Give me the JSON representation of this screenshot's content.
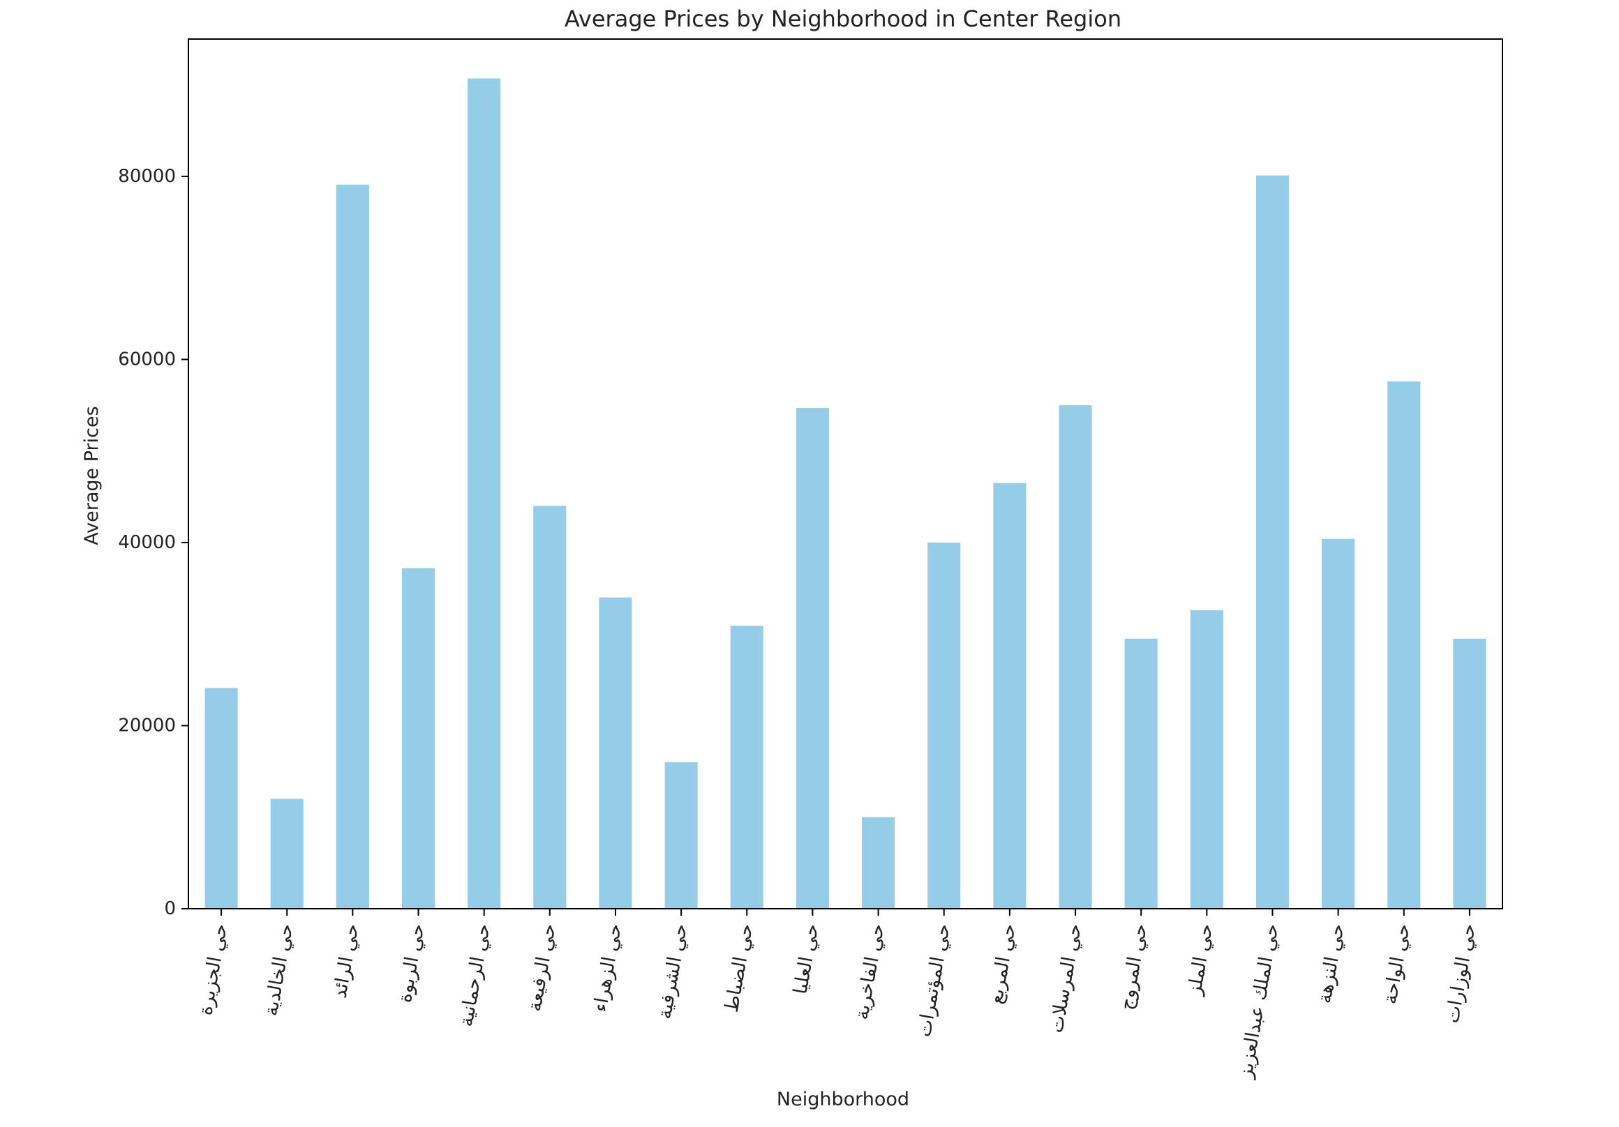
{
  "chart_data": {
    "type": "bar",
    "title": "Average Prices by Neighborhood in Center Region",
    "xlabel": "Neighborhood",
    "ylabel": "Average Prices",
    "ylim": [
      0,
      95000
    ],
    "yticks": [
      0,
      20000,
      40000,
      60000,
      80000
    ],
    "grid": false,
    "legend": "none",
    "bar_color": "#95cde8",
    "categories": [
      "حي الجزيرة",
      "حي الخالدية",
      "حي الرائد",
      "حي الربوة",
      "حي الرحمانية",
      "حي الرفيعة",
      "حي الزهراء",
      "حي الشرفية",
      "حي الضباط",
      "حي العليا",
      "حي الفاخرية",
      "حي المؤتمرات",
      "حي المربع",
      "حي المرسلات",
      "حي المروج",
      "حي الملز",
      "حي الملك عبدالعزيز",
      "حي النزهة",
      "حي الواحة",
      "حي الوزارات"
    ],
    "values": [
      24100,
      12000,
      79100,
      37200,
      90700,
      44000,
      34000,
      16000,
      30900,
      54700,
      10000,
      40000,
      46500,
      55000,
      29500,
      32600,
      80100,
      40400,
      57600,
      29500
    ]
  }
}
